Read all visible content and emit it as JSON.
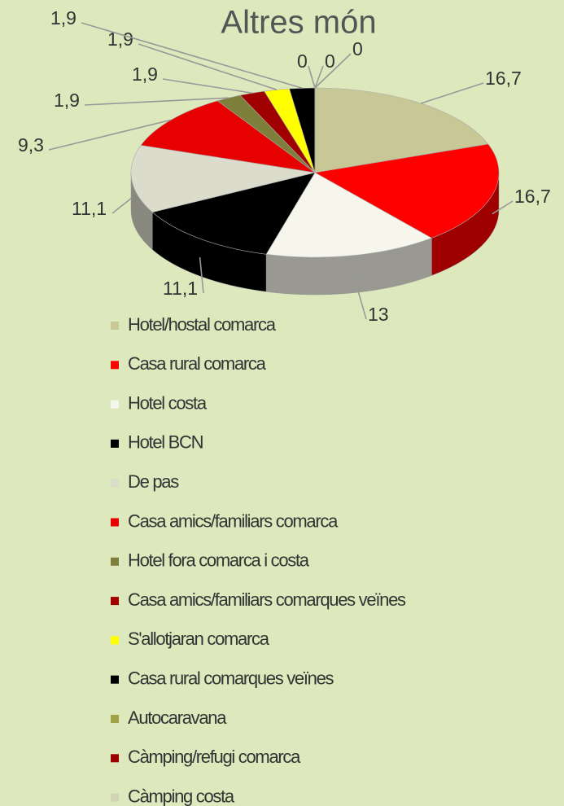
{
  "chart_data": {
    "type": "pie",
    "title": "Altres món",
    "categories": [
      "Hotel/hostal comarca",
      "Casa rural comarca",
      "Hotel costa",
      "Hotel BCN",
      "De pas",
      "Casa amics/familiars comarca",
      "Hotel fora comarca i costa",
      "Casa amics/familiars comarques veïnes",
      "S'allotjaran comarca",
      "Casa rural comarques veïnes",
      "Autocaravana",
      "Càmping/refugi comarca",
      "Càmping costa"
    ],
    "values": [
      16.7,
      16.7,
      13,
      11.1,
      11.1,
      9.3,
      1.9,
      1.9,
      1.9,
      1.9,
      0,
      0,
      0
    ],
    "value_labels": [
      "16,7",
      "16,7",
      "13",
      "11,1",
      "11,1",
      "9,3",
      "1,9",
      "1,9",
      "1,9",
      "1,9",
      "0",
      "0",
      "0"
    ],
    "colors": [
      "#c8c896",
      "#ff0000",
      "#f6f6ec",
      "#000000",
      "#dcdccc",
      "#e60000",
      "#7f7f3c",
      "#a00000",
      "#ffff00",
      "#000000",
      "#a0a046",
      "#9a0000",
      "#d2d2b4"
    ],
    "legend": "bottom"
  }
}
